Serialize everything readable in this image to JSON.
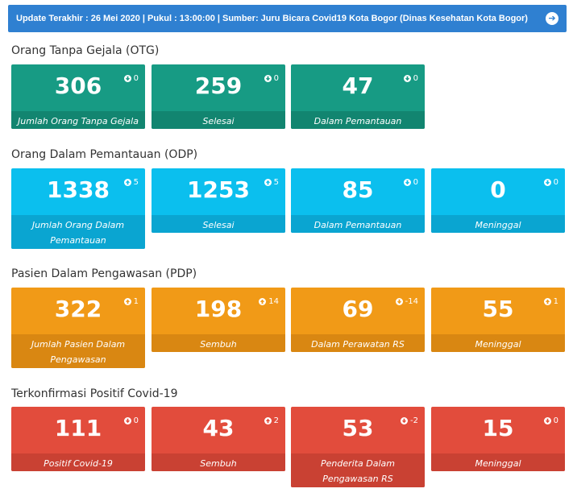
{
  "banner": {
    "text": "Update Terakhir : 26 Mei 2020 | Pukul : 13:00:00 | Sumber: Juru Bicara Covid19 Kota Bogor (Dinas Kesehatan Kota Bogor)",
    "icon": "arrow-right-circle-icon"
  },
  "colors": {
    "banner": "#2f80d1",
    "otg": "#179b84",
    "odp": "#0bbfee",
    "pdp": "#f19a17",
    "positif": "#e24c3c"
  },
  "sections": {
    "otg": {
      "title": "Orang Tanpa Gejala (OTG)",
      "cards": [
        {
          "value": "306",
          "delta": "0",
          "direction": "down",
          "label": "Jumlah Orang Tanpa Gejala"
        },
        {
          "value": "259",
          "delta": "0",
          "direction": "down",
          "label": "Selesai"
        },
        {
          "value": "47",
          "delta": "0",
          "direction": "down",
          "label": "Dalam Pemantauan"
        }
      ]
    },
    "odp": {
      "title": "Orang Dalam Pemantauan (ODP)",
      "cards": [
        {
          "value": "1338",
          "delta": "5",
          "direction": "up",
          "label": "Jumlah Orang Dalam Pemantauan"
        },
        {
          "value": "1253",
          "delta": "5",
          "direction": "up",
          "label": "Selesai"
        },
        {
          "value": "85",
          "delta": "0",
          "direction": "down",
          "label": "Dalam Pemantauan"
        },
        {
          "value": "0",
          "delta": "0",
          "direction": "down",
          "label": "Meninggal"
        }
      ]
    },
    "pdp": {
      "title": "Pasien Dalam Pengawasan (PDP)",
      "cards": [
        {
          "value": "322",
          "delta": "1",
          "direction": "up",
          "label": "Jumlah Pasien Dalam Pengawasan"
        },
        {
          "value": "198",
          "delta": "14",
          "direction": "up",
          "label": "Sembuh"
        },
        {
          "value": "69",
          "delta": "-14",
          "direction": "down",
          "label": "Dalam Perawatan RS"
        },
        {
          "value": "55",
          "delta": "1",
          "direction": "up",
          "label": "Meninggal"
        }
      ]
    },
    "positif": {
      "title": "Terkonfirmasi Positif Covid-19",
      "cards": [
        {
          "value": "111",
          "delta": "0",
          "direction": "down",
          "label": "Positif Covid-19"
        },
        {
          "value": "43",
          "delta": "2",
          "direction": "up",
          "label": "Sembuh"
        },
        {
          "value": "53",
          "delta": "-2",
          "direction": "down",
          "label": "Penderita Dalam Pengawasan RS"
        },
        {
          "value": "15",
          "delta": "0",
          "direction": "down",
          "label": "Meninggal"
        }
      ]
    }
  }
}
